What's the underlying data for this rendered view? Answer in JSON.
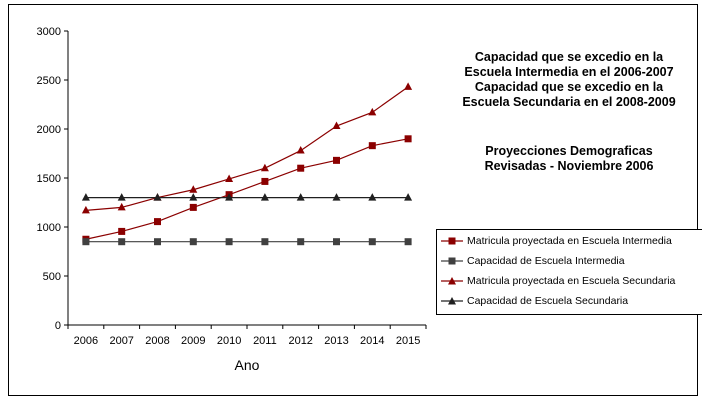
{
  "chart_data": {
    "type": "line",
    "x": [
      2006,
      2007,
      2008,
      2009,
      2010,
      2011,
      2012,
      2013,
      2014,
      2015
    ],
    "xlabel": "Ano",
    "ylabel": "",
    "ylim": [
      0,
      3000
    ],
    "yticks": [
      0,
      500,
      1000,
      1500,
      2000,
      2500,
      3000
    ],
    "grid": false,
    "legend_position": "right",
    "series": [
      {
        "name": "Matricula proyectada en Escuela Intermedia",
        "marker": "square",
        "color": "#8B0000",
        "values": [
          875,
          955,
          1055,
          1200,
          1330,
          1465,
          1600,
          1680,
          1830,
          1900
        ]
      },
      {
        "name": "Capacidad de Escuela Intermedia",
        "marker": "square",
        "color": "#404040",
        "values": [
          850,
          850,
          850,
          850,
          850,
          850,
          850,
          850,
          850,
          850
        ]
      },
      {
        "name": "Matricula proyectada en Escuela Secundaria",
        "marker": "triangle",
        "color": "#8B0000",
        "values": [
          1170,
          1200,
          1300,
          1380,
          1490,
          1600,
          1780,
          2030,
          2170,
          2430
        ]
      },
      {
        "name": "Capacidad de Escuela Secundaria",
        "marker": "triangle",
        "color": "#202020",
        "values": [
          1300,
          1300,
          1300,
          1300,
          1300,
          1300,
          1300,
          1300,
          1300,
          1300
        ]
      }
    ],
    "annotations": [
      [
        "Capacidad que se excedio en la",
        "Escuela Intermedia en el 2006-2007",
        "Capacidad que se excedio en la",
        "Escuela Secundaria en el 2008-2009"
      ],
      [
        "Proyecciones Demograficas",
        "Revisadas - Noviembre 2006"
      ]
    ]
  }
}
